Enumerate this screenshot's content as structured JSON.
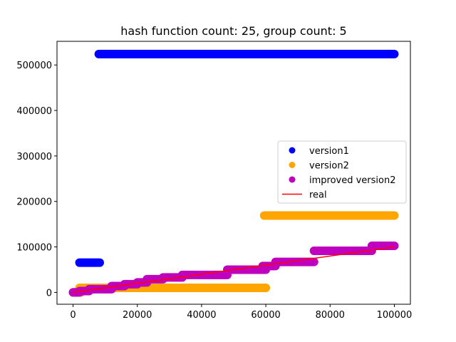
{
  "chart_data": {
    "type": "scatter",
    "title": "hash function count: 25, group count: 5",
    "xlabel": "",
    "ylabel": "",
    "xlim": [
      -5000,
      105000
    ],
    "ylim": [
      -26000,
      552000
    ],
    "xticks": [
      0,
      20000,
      40000,
      60000,
      80000,
      100000
    ],
    "xtick_labels": [
      "0",
      "20000",
      "40000",
      "60000",
      "80000",
      "100000"
    ],
    "yticks": [
      0,
      100000,
      200000,
      300000,
      400000,
      500000
    ],
    "ytick_labels": [
      "0",
      "100000",
      "200000",
      "300000",
      "400000",
      "500000"
    ],
    "grid": false,
    "legend_position": "center-right",
    "series": [
      {
        "name": "version1",
        "kind": "scatter",
        "color": "#0000ff",
        "segments": [
          {
            "x_start": 0,
            "x_end": 2000,
            "y": 0
          },
          {
            "x_start": 2000,
            "x_end": 8300,
            "y": 65500
          },
          {
            "x_start": 8000,
            "x_end": 100000,
            "y": 524000
          }
        ]
      },
      {
        "name": "version2",
        "kind": "scatter",
        "color": "#ffa500",
        "segments": [
          {
            "x_start": 0,
            "x_end": 2500,
            "y": 0
          },
          {
            "x_start": 2000,
            "x_end": 60000,
            "y": 10000
          },
          {
            "x_start": 59500,
            "x_end": 100000,
            "y": 169000
          }
        ]
      },
      {
        "name": "improved version2",
        "kind": "scatter",
        "color": "#bf00bf",
        "segments": [
          {
            "x_start": 0,
            "x_end": 2000,
            "y": 0
          },
          {
            "x_start": 2000,
            "x_end": 5000,
            "y": 3000
          },
          {
            "x_start": 5000,
            "x_end": 12000,
            "y": 7000
          },
          {
            "x_start": 12000,
            "x_end": 16000,
            "y": 14000
          },
          {
            "x_start": 16000,
            "x_end": 20000,
            "y": 18000
          },
          {
            "x_start": 20000,
            "x_end": 23000,
            "y": 22000
          },
          {
            "x_start": 23000,
            "x_end": 28000,
            "y": 29000
          },
          {
            "x_start": 28000,
            "x_end": 34000,
            "y": 33000
          },
          {
            "x_start": 34000,
            "x_end": 48000,
            "y": 38500
          },
          {
            "x_start": 48000,
            "x_end": 60000,
            "y": 50000
          },
          {
            "x_start": 59000,
            "x_end": 63000,
            "y": 58000
          },
          {
            "x_start": 63000,
            "x_end": 75000,
            "y": 67000
          },
          {
            "x_start": 75000,
            "x_end": 93000,
            "y": 91500
          },
          {
            "x_start": 93000,
            "x_end": 100000,
            "y": 102500
          }
        ]
      },
      {
        "name": "real",
        "kind": "line",
        "color": "#ff0000",
        "x": [
          0,
          100000
        ],
        "y": [
          0,
          100000
        ]
      }
    ]
  }
}
